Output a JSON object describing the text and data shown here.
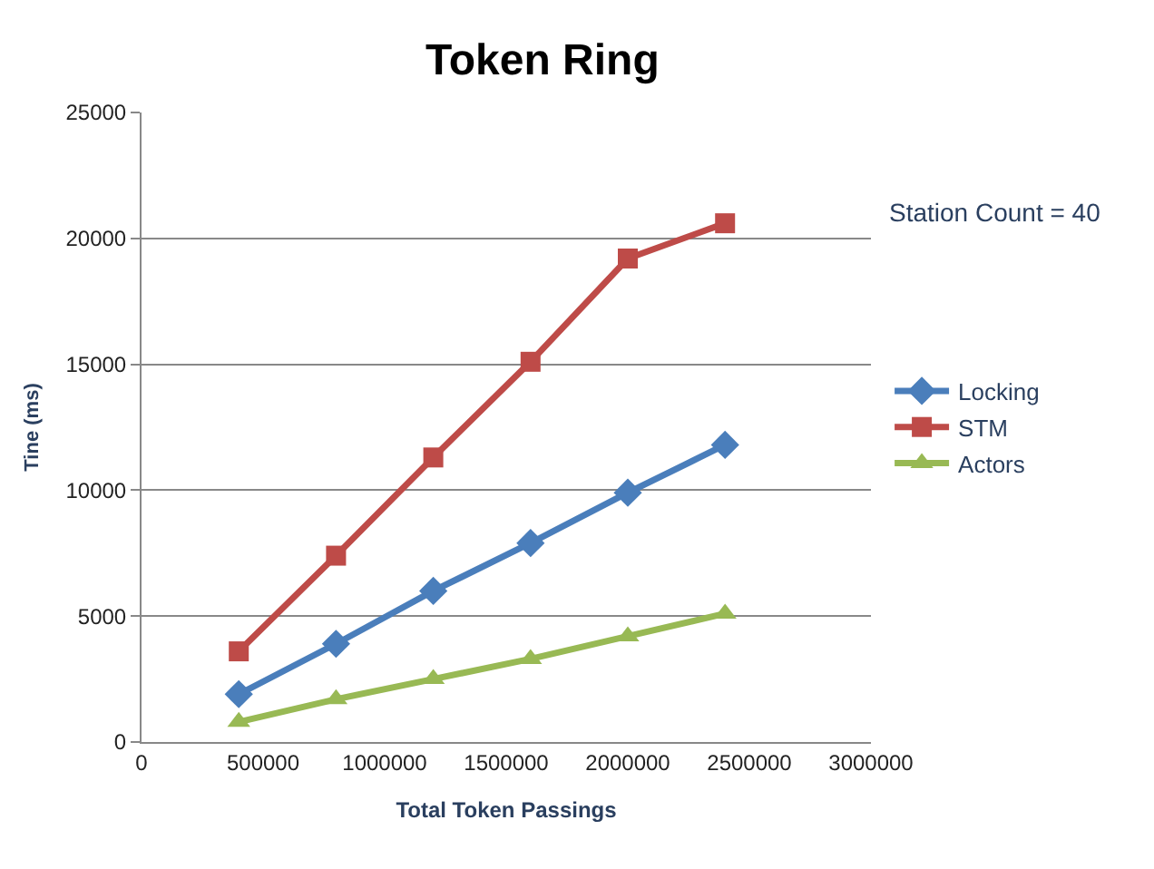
{
  "chart_data": {
    "type": "line",
    "title": "Token Ring",
    "xlabel": "Total Token Passings",
    "ylabel": "Tine (ms)",
    "annotations": [
      "Station Count = 40"
    ],
    "x": [
      400000,
      800000,
      1200000,
      1600000,
      2000000,
      2400000
    ],
    "series": [
      {
        "name": "Locking",
        "color": "#4a7ebb",
        "marker": "diamond",
        "values": [
          1900,
          3900,
          6000,
          7900,
          9900,
          11800
        ]
      },
      {
        "name": "STM",
        "color": "#be4b48",
        "marker": "square",
        "values": [
          3600,
          7400,
          11300,
          15100,
          19200,
          20600
        ]
      },
      {
        "name": "Actors",
        "color": "#98b954",
        "marker": "triangle",
        "values": [
          800,
          1700,
          2500,
          3300,
          4200,
          5100
        ]
      }
    ],
    "xlim": [
      0,
      3000000
    ],
    "xticks": [
      0,
      500000,
      1000000,
      1500000,
      2000000,
      2500000,
      3000000
    ],
    "ylim": [
      0,
      25000
    ],
    "yticks": [
      0,
      5000,
      10000,
      15000,
      20000,
      25000
    ],
    "grid": "y",
    "legend": "right",
    "line_style": "solid"
  }
}
